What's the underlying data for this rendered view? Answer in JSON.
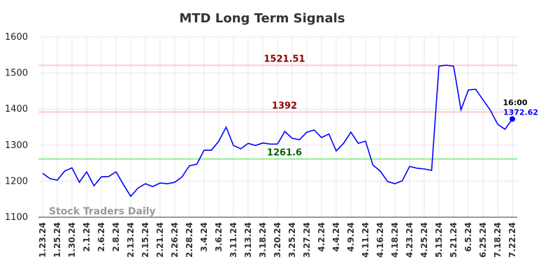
{
  "chart_data": {
    "type": "line",
    "title": "MTD Long Term Signals",
    "categories": [
      "1.23.24",
      null,
      "1.25.24",
      null,
      "1.30.24",
      null,
      "2.1.24",
      null,
      "2.6.24",
      null,
      "2.8.24",
      null,
      "2.13.24",
      null,
      "2.15.24",
      null,
      "2.21.24",
      null,
      "2.26.24",
      null,
      "2.28.24",
      null,
      "3.4.24",
      null,
      "3.6.24",
      null,
      "3.11.24",
      null,
      "3.13.24",
      null,
      "3.18.24",
      null,
      "3.20.24",
      null,
      "3.25.24",
      null,
      "3.27.24",
      null,
      "4.2.24",
      null,
      "4.4.24",
      null,
      "4.9.24",
      null,
      "4.11.24",
      null,
      "4.16.24",
      null,
      "4.18.24",
      null,
      "4.23.24",
      null,
      "4.25.24",
      null,
      "5.15.24",
      null,
      "5.21.24",
      null,
      "6.5.24",
      null,
      "6.25.24",
      null,
      "7.18.24",
      null,
      "7.22.24"
    ],
    "series": [
      {
        "name": "MTD",
        "color": "#0000ff",
        "values": [
          1222,
          1207,
          1203,
          1228,
          1237,
          1197,
          1226,
          1187,
          1212,
          1213,
          1226,
          1191,
          1158,
          1181,
          1193,
          1185,
          1195,
          1193,
          1197,
          1212,
          1243,
          1247,
          1286,
          1286,
          1311,
          1350,
          1299,
          1290,
          1305,
          1299,
          1306,
          1303,
          1303,
          1338,
          1319,
          1315,
          1336,
          1342,
          1321,
          1331,
          1284,
          1305,
          1336,
          1305,
          1311,
          1245,
          1228,
          1199,
          1193,
          1201,
          1241,
          1236,
          1234,
          1230,
          1519,
          1522,
          1519,
          1398,
          1453,
          1455,
          1426,
          1397,
          1358,
          1344,
          1372.62
        ]
      }
    ],
    "ylim": [
      1100,
      1600
    ],
    "yticks": [
      1100,
      1200,
      1300,
      1400,
      1500,
      1600
    ],
    "grid": true,
    "reference_lines": [
      {
        "value": 1521.51,
        "color": "#ffc8c8",
        "label_color": "#8b0000"
      },
      {
        "value": 1392,
        "color": "#ffc8c8",
        "label_color": "#8b0000"
      },
      {
        "value": 1261.6,
        "color": "#90ee90",
        "label_color": "#006400"
      }
    ],
    "last_time_label": "16:00",
    "watermark": "Stock Traders Daily"
  }
}
